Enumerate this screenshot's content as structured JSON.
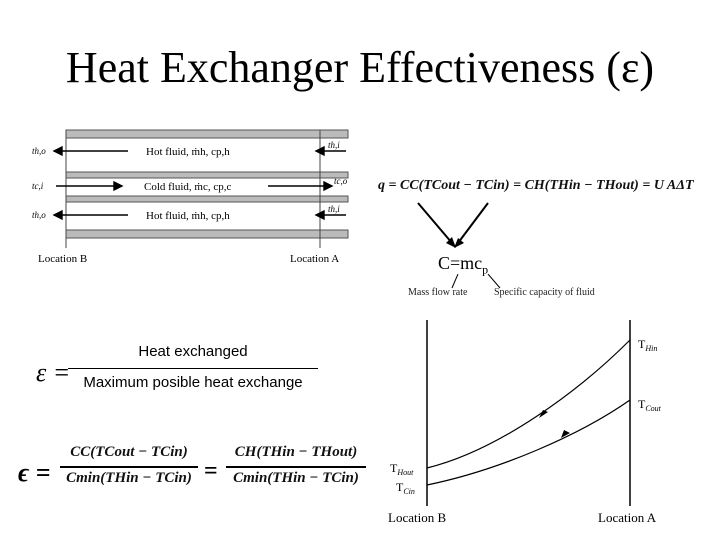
{
  "slide": {
    "title": "Heat Exchanger Effectiveness (ε)"
  },
  "schematic": {
    "top_fluid": "Hot fluid, ṁh, cp,h",
    "middle_fluid": "Cold fluid, ṁc, cp,c",
    "bottom_fluid": "Hot fluid, ṁh, cp,h",
    "left_labels": [
      "th,o",
      "tc,i",
      "th,o"
    ],
    "right_labels": [
      "th,i",
      "tc,o",
      "th,i"
    ],
    "location_b": "Location B",
    "location_a": "Location A"
  },
  "equations": {
    "heat_rate": "q = CC(TCout − TCin) = CH(THin − THout) = U AΔT",
    "capacity": "C=mc",
    "capacity_sub": "p",
    "mass_flow_note": "Mass flow rate",
    "specific_capacity_note": "Specific capacity of fluid",
    "effectiveness_symbol": "ε =",
    "effectiveness_numerator": "Heat exchanged",
    "effectiveness_denominator": "Maximum posible heat exchange",
    "ratio_lhs": "ϵ =",
    "ratio_1_num": "CC(TCout − TCin)",
    "ratio_1_den": "Cmin(THin − TCin)",
    "equals": "=",
    "ratio_2_num": "CH(THin − THout)",
    "ratio_2_den": "Cmin(THin − TCin)"
  },
  "temperature_plot": {
    "label_hin": "T",
    "label_hin_sub": "Hin",
    "label_cout": "T",
    "label_cout_sub": "Cout",
    "label_hout": "T",
    "label_hout_sub": "Hout",
    "label_cin": "T",
    "label_cin_sub": "Cin",
    "location_b": "Location B",
    "location_a": "Location A"
  }
}
